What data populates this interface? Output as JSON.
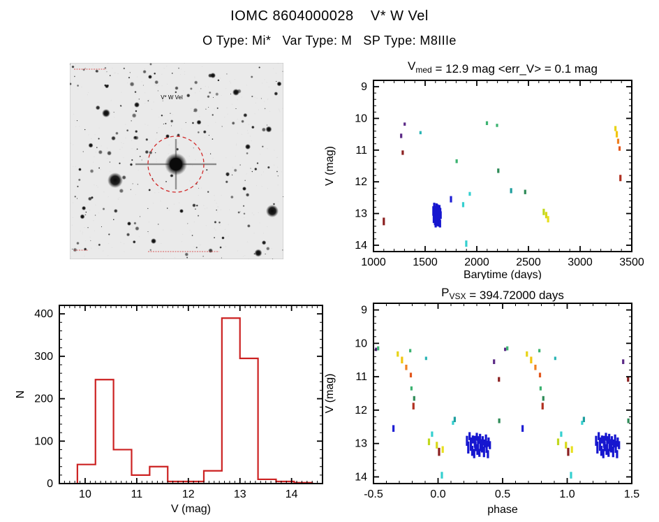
{
  "header": {
    "title": "IOMC 8604000028    V* W Vel",
    "subtitle": "O Type: Mi*   Var Type: M   SP Type: M8IIIe"
  },
  "finder": {
    "label": "V* W Vel",
    "aperture_color": "#d22b2b",
    "background": "#eaeaea"
  },
  "chart_data": [
    {
      "id": "lightcurve",
      "type": "scatter",
      "title_parts": [
        {
          "t": "V"
        },
        {
          "t": "med",
          "sub": true
        },
        {
          "t": " = 12.9 mag <err_V> = 0.1 mag"
        }
      ],
      "xlabel": "Barytime (days)",
      "ylabel": "V (mag)",
      "xlim": [
        1000,
        3500
      ],
      "ytop": 8.8,
      "ybottom": 14.2,
      "xticks": [
        1000,
        1500,
        2000,
        2500,
        3000,
        3500
      ],
      "xtick_labels": [
        "1000",
        "1500",
        "2000",
        "2500",
        "3000",
        "3500"
      ],
      "yticks": [
        9,
        10,
        11,
        12,
        13,
        14
      ],
      "ytick_labels": [
        "9",
        "10",
        "11",
        "12",
        "13",
        "14"
      ],
      "x_minor": 100,
      "y_minor": 0.2,
      "y_axis_inverted_mag": true,
      "points": [
        [
          1100,
          13.25,
          0.12,
          "#8b2020"
        ],
        [
          1268,
          10.55,
          0.07,
          "#5b2a86"
        ],
        [
          1283,
          11.08,
          0.07,
          "#8b2020"
        ],
        [
          1302,
          10.18,
          0.05,
          "#5b2a86"
        ],
        [
          1455,
          10.45,
          0.05,
          "#2bb5b5"
        ],
        [
          1750,
          12.55,
          0.1,
          "#1f1fd4"
        ],
        [
          1805,
          11.35,
          0.06,
          "#3cb371"
        ],
        [
          1868,
          12.72,
          0.08,
          "#35d0d0"
        ],
        [
          1898,
          13.95,
          0.1,
          "#35d0d0"
        ],
        [
          1932,
          12.38,
          0.06,
          "#35d0d0"
        ],
        [
          2098,
          10.15,
          0.06,
          "#3cb371"
        ],
        [
          2196,
          10.22,
          0.05,
          "#3cb371"
        ],
        [
          2208,
          11.65,
          0.07,
          "#2e8b57"
        ],
        [
          2332,
          12.28,
          0.08,
          "#1e9e9e"
        ],
        [
          2468,
          12.32,
          0.07,
          "#2e8b57"
        ],
        [
          2648,
          12.95,
          0.1,
          "#c0d81f"
        ],
        [
          2672,
          13.05,
          0.1,
          "#d8d818"
        ],
        [
          2690,
          13.18,
          0.1,
          "#e8e020"
        ],
        [
          3342,
          10.32,
          0.08,
          "#e8d418"
        ],
        [
          3355,
          10.5,
          0.1,
          "#f2c50f"
        ],
        [
          3368,
          10.72,
          0.08,
          "#f08020"
        ],
        [
          3382,
          10.95,
          0.07,
          "#e2571d"
        ],
        [
          3390,
          11.88,
          0.1,
          "#b03020"
        ],
        [
          1580,
          12.92,
          0.15,
          "#1616cf"
        ],
        [
          1584,
          13.12,
          0.18,
          "#1616cf"
        ],
        [
          1588,
          12.78,
          0.12,
          "#1616cf"
        ],
        [
          1592,
          13.02,
          0.2,
          "#1616cf"
        ],
        [
          1596,
          13.22,
          0.15,
          "#1616cf"
        ],
        [
          1598,
          12.88,
          0.12,
          "#1616cf"
        ],
        [
          1602,
          13.3,
          0.14,
          "#1616cf"
        ],
        [
          1604,
          12.95,
          0.18,
          "#1616cf"
        ],
        [
          1606,
          13.08,
          0.15,
          "#1616cf"
        ],
        [
          1610,
          12.8,
          0.12,
          "#1616cf"
        ],
        [
          1612,
          13.18,
          0.16,
          "#1616cf"
        ],
        [
          1614,
          12.98,
          0.2,
          "#1616cf"
        ],
        [
          1618,
          13.28,
          0.12,
          "#1616cf"
        ],
        [
          1620,
          12.86,
          0.15,
          "#1616cf"
        ],
        [
          1622,
          13.05,
          0.18,
          "#1616cf"
        ],
        [
          1626,
          13.15,
          0.12,
          "#1616cf"
        ],
        [
          1628,
          12.92,
          0.14,
          "#1616cf"
        ],
        [
          1632,
          13.25,
          0.16,
          "#1616cf"
        ],
        [
          1634,
          13.0,
          0.12,
          "#1616cf"
        ],
        [
          1638,
          12.88,
          0.15,
          "#1616cf"
        ],
        [
          1640,
          13.1,
          0.18,
          "#1616cf"
        ],
        [
          1644,
          13.32,
          0.12,
          "#1616cf"
        ],
        [
          1646,
          12.96,
          0.14,
          "#1616cf"
        ],
        [
          1650,
          13.05,
          0.12,
          "#1616cf"
        ]
      ]
    },
    {
      "id": "histogram",
      "type": "bar",
      "xlabel": "V (mag)",
      "ylabel": "N",
      "xlim": [
        9.5,
        14.6
      ],
      "ylim": [
        0,
        420
      ],
      "xticks": [
        10,
        11,
        12,
        13,
        14
      ],
      "xtick_labels": [
        "10",
        "11",
        "12",
        "13",
        "14"
      ],
      "yticks": [
        0,
        100,
        200,
        300,
        400
      ],
      "ytick_labels": [
        "0",
        "100",
        "200",
        "300",
        "400"
      ],
      "x_minor": 0.1,
      "y_minor": 20,
      "bin_start": 9.85,
      "bin_width": 0.35,
      "values": [
        45,
        245,
        80,
        20,
        40,
        5,
        5,
        30,
        390,
        295,
        10,
        5,
        2
      ],
      "color": "#cc2222"
    },
    {
      "id": "phase",
      "type": "scatter-phase",
      "title_parts": [
        {
          "t": "P"
        },
        {
          "t": "VSX",
          "sub": true
        },
        {
          "t": " = 394.72000 days"
        }
      ],
      "xlabel": "phase",
      "ylabel": "V (mag)",
      "xlim": [
        -0.5,
        1.5
      ],
      "ytop": 8.8,
      "ybottom": 14.2,
      "xticks": [
        -0.5,
        0.0,
        0.5,
        1.0,
        1.5
      ],
      "xtick_labels": [
        "-0.5",
        "0.0",
        "0.5",
        "1.0",
        "1.5"
      ],
      "yticks": [
        9,
        10,
        11,
        12,
        13,
        14
      ],
      "ytick_labels": [
        "9",
        "10",
        "11",
        "12",
        "13",
        "14"
      ],
      "x_minor": 0.1,
      "y_minor": 0.2,
      "period_days": 394.72,
      "epoch_render_hint": 1491.6,
      "points_ref": "lightcurve"
    }
  ]
}
